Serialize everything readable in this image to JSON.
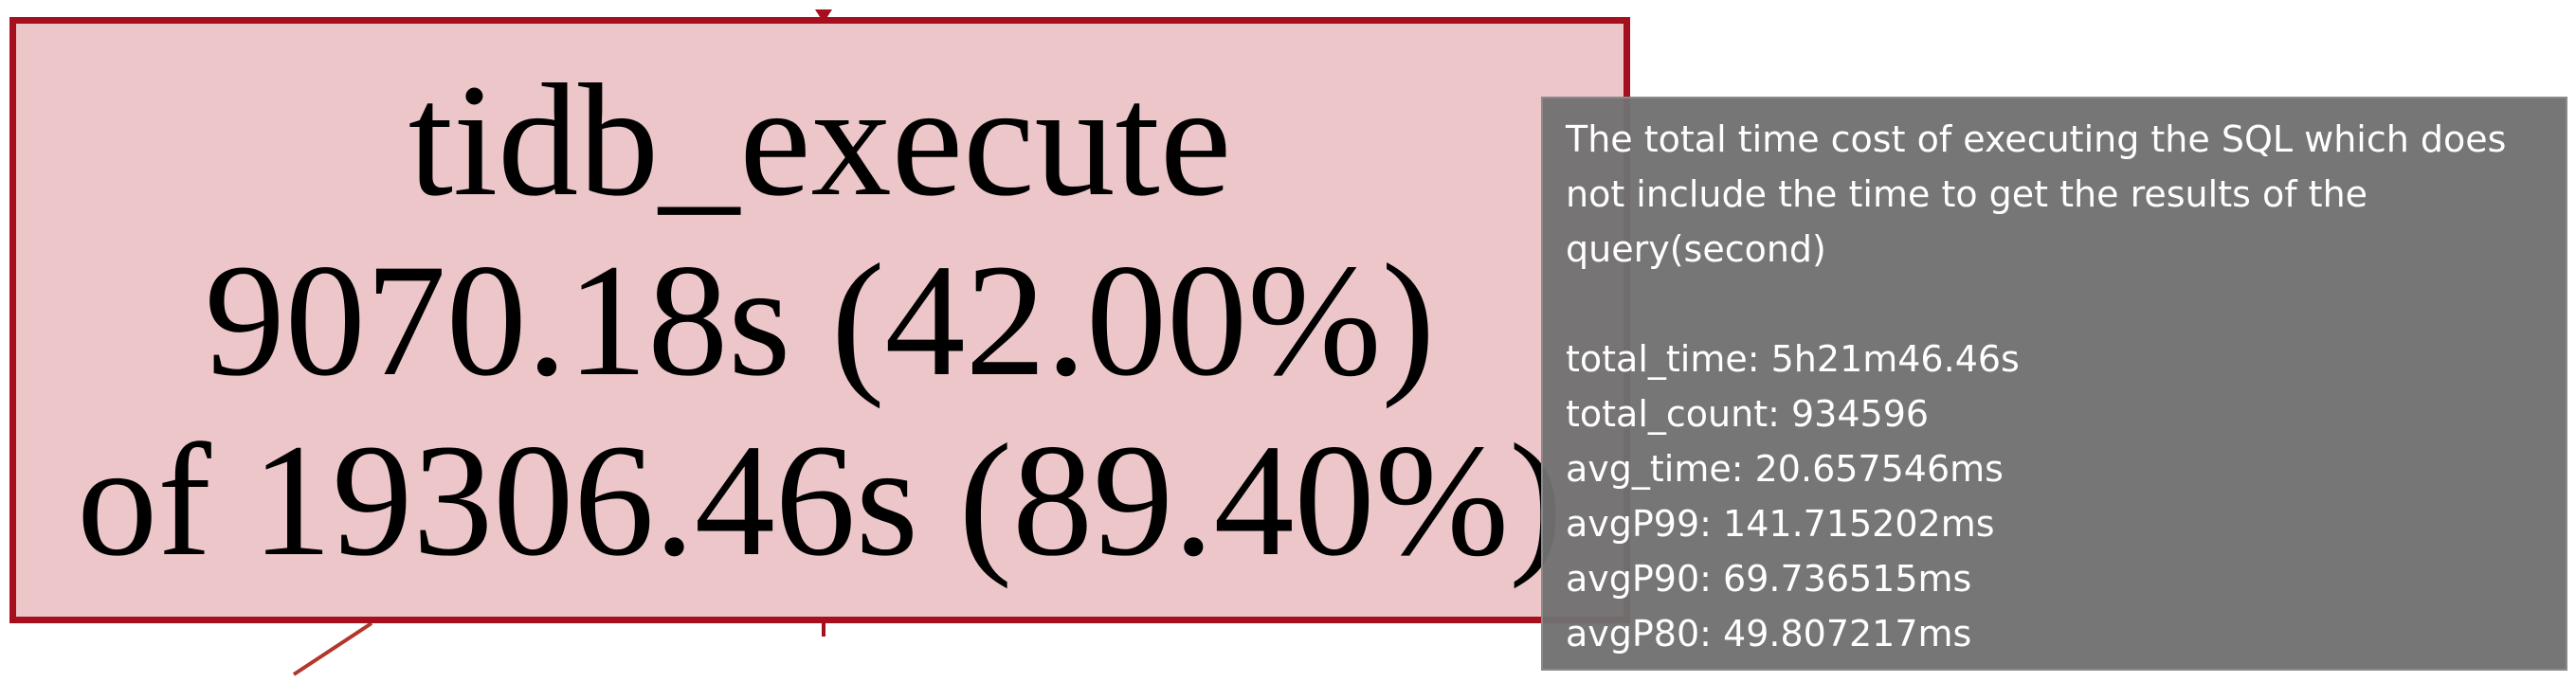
{
  "node": {
    "name": "tidb_execute",
    "self_time": "9070.18s (42.00%)",
    "total_time": "of 19306.46s (89.40%)"
  },
  "tooltip": {
    "description": "The total time cost of executing the SQL which does not include the time to get the results of the query(second)",
    "stats": [
      "total_time: 5h21m46.46s",
      "total_count: 934596",
      "avg_time: 20.657546ms",
      "avgP99: 141.715202ms",
      "avgP90: 69.736515ms",
      "avgP80: 49.807217ms"
    ]
  },
  "colors": {
    "node_fill": "#ecc6c8",
    "node_border": "#a60f1e",
    "tooltip_bg": "#707070",
    "tooltip_text": "#ffffff"
  }
}
